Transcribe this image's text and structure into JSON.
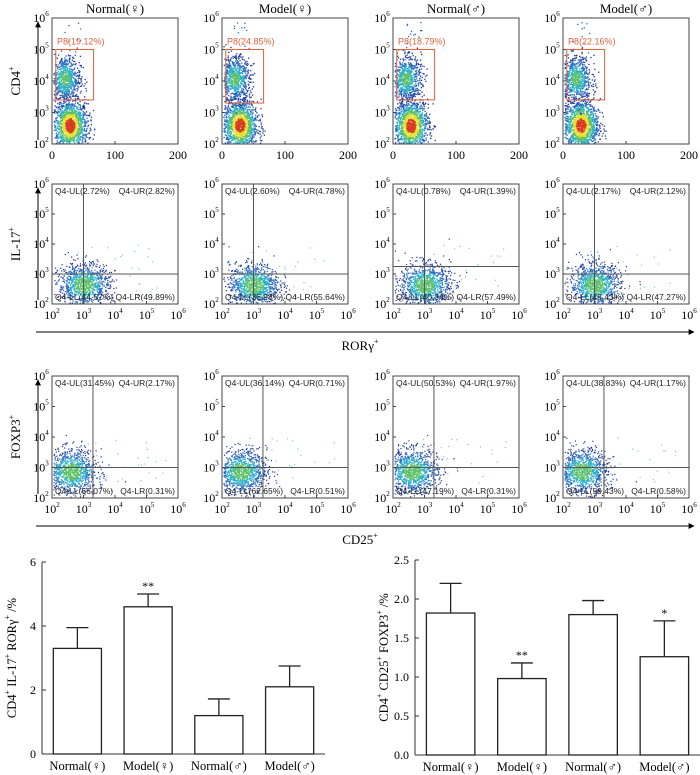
{
  "groups": [
    "Normal(♀)",
    "Model(♀)",
    "Normal(♂)",
    "Model(♂)"
  ],
  "flow_rows": [
    {
      "id": "cd4",
      "ylabel": "CD4+",
      "xlabel": "",
      "x_axis": {
        "type": "linear",
        "min": 0,
        "max": 200,
        "ticks": [
          "0",
          "100",
          "200"
        ]
      },
      "y_axis": {
        "type": "log",
        "min_exp": 2,
        "max_exp": 6,
        "ticks": [
          "10^2",
          "10^3",
          "10^4",
          "10^5",
          "10^6"
        ]
      },
      "panels": [
        {
          "title": "Normal(♀)",
          "gate": "P8(19.12%)",
          "gate_low_exp": 3.4
        },
        {
          "title": "Model(♀)",
          "gate": "P8(24.85%)",
          "gate_low_exp": 3.3
        },
        {
          "title": "Normal(♂)",
          "gate": "P8(18.79%)",
          "gate_low_exp": 3.4
        },
        {
          "title": "Model(♂)",
          "gate": "P8(22.16%)",
          "gate_low_exp": 3.4
        }
      ]
    },
    {
      "id": "il17",
      "ylabel": "IL-17+",
      "xlabel": "RORγ+",
      "x_axis": {
        "type": "log",
        "min_exp": 2,
        "max_exp": 6,
        "ticks": [
          "10^2",
          "10^3",
          "10^4",
          "10^5",
          "10^6"
        ]
      },
      "y_axis": {
        "type": "log",
        "min_exp": 2,
        "max_exp": 6,
        "ticks": [
          "10^2",
          "10^3",
          "10^4",
          "10^5",
          "10^6"
        ]
      },
      "panels": [
        {
          "UL": "Q4-UL(2.72%)",
          "UR": "Q4-UR(2.82%)",
          "LL": "Q4-LL(44.57%)",
          "LR": "Q4-LR(49.89%)",
          "qx": 3.0,
          "qy": 3.0
        },
        {
          "UL": "Q4-UL(2.60%)",
          "UR": "Q4-UR(4.78%)",
          "LL": "Q4-LL(36.98%)",
          "LR": "Q4-LR(55.64%)",
          "qx": 3.0,
          "qy": 3.0
        },
        {
          "UL": "Q4-UL(0.78%)",
          "UR": "Q4-UR(1.39%)",
          "LL": "Q4-LL(40.34%)",
          "LR": "Q4-LR(57.49%)",
          "qx": 3.0,
          "qy": 3.25
        },
        {
          "UL": "Q4-UL(2.17%)",
          "UR": "Q4-UR(2.12%)",
          "LL": "Q4-LL(48.43%)",
          "LR": "Q4-LR(47.27%)",
          "qx": 3.0,
          "qy": 3.0
        }
      ]
    },
    {
      "id": "foxp3",
      "ylabel": "FOXP3+",
      "xlabel": "CD25+",
      "x_axis": {
        "type": "log",
        "min_exp": 2,
        "max_exp": 6,
        "ticks": [
          "10^2",
          "10^3",
          "10^4",
          "10^5",
          "10^6"
        ]
      },
      "y_axis": {
        "type": "log",
        "min_exp": 2,
        "max_exp": 6,
        "ticks": [
          "10^2",
          "10^3",
          "10^4",
          "10^5",
          "10^6"
        ]
      },
      "panels": [
        {
          "UL": "Q4-UL(31.45%)",
          "UR": "Q4-UR(2.17%)",
          "LL": "Q4-LL(66.07%)",
          "LR": "Q4-LR(0.31%)",
          "qx": 3.3,
          "qy": 3.0
        },
        {
          "UL": "Q4-UL(36.14%)",
          "UR": "Q4-UR(0.71%)",
          "LL": "Q4-LL(62.65%)",
          "LR": "Q4-LR(0.51%)",
          "qx": 3.3,
          "qy": 3.0
        },
        {
          "UL": "Q4-UL(50.53%)",
          "UR": "Q4-UR(1.97%)",
          "LL": "Q4-LL(47.19%)",
          "LR": "Q4-LR(0.31%)",
          "qx": 3.3,
          "qy": 3.0
        },
        {
          "UL": "Q4-UL(38.83%)",
          "UR": "Q4-UR(1.17%)",
          "LL": "Q4-LL(59.43%)",
          "LR": "Q4-LR(0.58%)",
          "qx": 3.3,
          "qy": 3.0
        }
      ]
    }
  ],
  "colors": {
    "gate": "#e0623a",
    "density_low": "#1f3a9e",
    "density_mid": "#2ab0c8",
    "density_high": "#e6e030",
    "density_peak": "#d93a1e"
  },
  "chart_data": [
    {
      "type": "bar",
      "title": "",
      "xlabel": "",
      "ylabel": "CD4+ IL-17+ RORγ+ /%",
      "categories": [
        "Normal(♀)",
        "Model(♀)",
        "Normal(♂)",
        "Model(♂)"
      ],
      "values": [
        3.3,
        4.6,
        1.2,
        2.1
      ],
      "error": [
        0.65,
        0.4,
        0.52,
        0.65
      ],
      "annotations": [
        "",
        "**",
        "",
        ""
      ],
      "ylim": [
        0,
        6
      ],
      "yticks": [
        "0",
        "2",
        "4",
        "6"
      ],
      "ytick_values": [
        0,
        2,
        4,
        6
      ],
      "grid": false
    },
    {
      "type": "bar",
      "title": "",
      "xlabel": "",
      "ylabel": "CD4+ CD25+ FOXP3+ /%",
      "categories": [
        "Normal(♀)",
        "Model(♀)",
        "Normal(♂)",
        "Model(♂)"
      ],
      "values": [
        1.82,
        0.98,
        1.8,
        1.26
      ],
      "error": [
        0.38,
        0.2,
        0.18,
        0.46
      ],
      "annotations": [
        "",
        "**",
        "",
        "*"
      ],
      "ylim": [
        0,
        2.5
      ],
      "yticks": [
        "0.0",
        "0.5",
        "1.0",
        "1.5",
        "2.0",
        "2.5"
      ],
      "ytick_values": [
        0,
        0.5,
        1.0,
        1.5,
        2.0,
        2.5
      ],
      "grid": false
    }
  ]
}
